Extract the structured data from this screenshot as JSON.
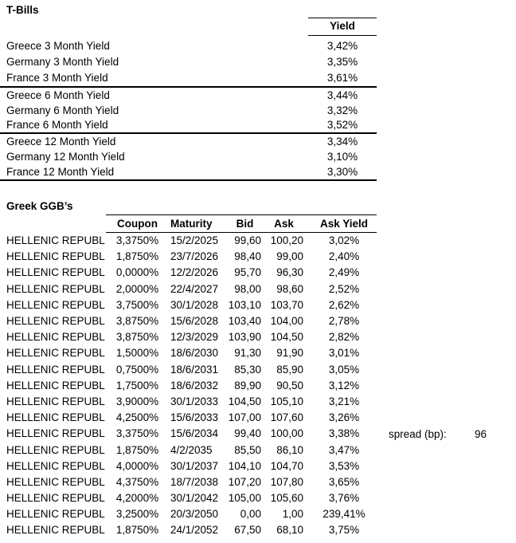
{
  "tbills": {
    "title": "T-Bills",
    "yield_header": "Yield",
    "groups": [
      [
        {
          "label": "Greece 3 Month Yield",
          "value": "3,42%"
        },
        {
          "label": "Germany 3 Month Yield",
          "value": "3,35%"
        },
        {
          "label": "France 3 Month Yield",
          "value": "3,61%"
        }
      ],
      [
        {
          "label": "Greece 6 Month Yield",
          "value": "3,44%"
        },
        {
          "label": "Germany 6 Month Yield",
          "value": "3,32%"
        },
        {
          "label": "France 6 Month Yield",
          "value": "3,52%"
        }
      ],
      [
        {
          "label": "Greece 12 Month Yield",
          "value": "3,34%"
        },
        {
          "label": "Germany 12 Month Yield",
          "value": "3,10%"
        },
        {
          "label": "France 12 Month Yield",
          "value": "3,30%"
        }
      ]
    ]
  },
  "ggb": {
    "title": "Greek GGB’s",
    "columns": [
      "Coupon",
      "Maturity",
      "Bid",
      "Ask",
      "Ask Yield"
    ],
    "rows": [
      {
        "issuer": "HELLENIC REPUBLI",
        "coupon": "3,3750%",
        "maturity": "15/2/2025",
        "bid": "99,60",
        "ask": "100,20",
        "ask_yield": "3,02%"
      },
      {
        "issuer": "HELLENIC REPUBLI",
        "coupon": "1,8750%",
        "maturity": "23/7/2026",
        "bid": "98,40",
        "ask": "99,00",
        "ask_yield": "2,40%"
      },
      {
        "issuer": "HELLENIC REPUBLI",
        "coupon": "0,0000%",
        "maturity": "12/2/2026",
        "bid": "95,70",
        "ask": "96,30",
        "ask_yield": "2,49%"
      },
      {
        "issuer": "HELLENIC REPUBLI",
        "coupon": "2,0000%",
        "maturity": "22/4/2027",
        "bid": "98,00",
        "ask": "98,60",
        "ask_yield": "2,52%"
      },
      {
        "issuer": "HELLENIC REPUBLI",
        "coupon": "3,7500%",
        "maturity": "30/1/2028",
        "bid": "103,10",
        "ask": "103,70",
        "ask_yield": "2,62%"
      },
      {
        "issuer": "HELLENIC REPUBLI",
        "coupon": "3,8750%",
        "maturity": "15/6/2028",
        "bid": "103,40",
        "ask": "104,00",
        "ask_yield": "2,78%"
      },
      {
        "issuer": "HELLENIC REPUBLI",
        "coupon": "3,8750%",
        "maturity": "12/3/2029",
        "bid": "103,90",
        "ask": "104,50",
        "ask_yield": "2,82%"
      },
      {
        "issuer": "HELLENIC REPUBLI",
        "coupon": "1,5000%",
        "maturity": "18/6/2030",
        "bid": "91,30",
        "ask": "91,90",
        "ask_yield": "3,01%"
      },
      {
        "issuer": "HELLENIC REPUBLI",
        "coupon": "0,7500%",
        "maturity": "18/6/2031",
        "bid": "85,30",
        "ask": "85,90",
        "ask_yield": "3,05%"
      },
      {
        "issuer": "HELLENIC REPUBLI",
        "coupon": "1,7500%",
        "maturity": "18/6/2032",
        "bid": "89,90",
        "ask": "90,50",
        "ask_yield": "3,12%"
      },
      {
        "issuer": "HELLENIC REPUBLI",
        "coupon": "3,9000%",
        "maturity": "30/1/2033",
        "bid": "104,50",
        "ask": "105,10",
        "ask_yield": "3,21%"
      },
      {
        "issuer": "HELLENIC REPUBLI",
        "coupon": "4,2500%",
        "maturity": "15/6/2033",
        "bid": "107,00",
        "ask": "107,60",
        "ask_yield": "3,26%"
      },
      {
        "issuer": "HELLENIC REPUBLI",
        "coupon": "3,3750%",
        "maturity": "15/6/2034",
        "bid": "99,40",
        "ask": "100,00",
        "ask_yield": "3,38%"
      },
      {
        "issuer": "HELLENIC REPUBLI",
        "coupon": "1,8750%",
        "maturity": "4/2/2035",
        "bid": "85,50",
        "ask": "86,10",
        "ask_yield": "3,47%"
      },
      {
        "issuer": "HELLENIC REPUBLI",
        "coupon": "4,0000%",
        "maturity": "30/1/2037",
        "bid": "104,10",
        "ask": "104,70",
        "ask_yield": "3,53%"
      },
      {
        "issuer": "HELLENIC REPUBLI",
        "coupon": "4,3750%",
        "maturity": "18/7/2038",
        "bid": "107,20",
        "ask": "107,80",
        "ask_yield": "3,65%"
      },
      {
        "issuer": "HELLENIC REPUBLI",
        "coupon": "4,2000%",
        "maturity": "30/1/2042",
        "bid": "105,00",
        "ask": "105,60",
        "ask_yield": "3,76%"
      },
      {
        "issuer": "HELLENIC REPUBLI",
        "coupon": "3,2500%",
        "maturity": "20/3/2050",
        "bid": "0,00",
        "ask": "1,00",
        "ask_yield": "239,41%"
      },
      {
        "issuer": "HELLENIC REPUBLI",
        "coupon": "1,8750%",
        "maturity": "24/1/2052",
        "bid": "67,50",
        "ask": "68,10",
        "ask_yield": "3,75%"
      }
    ]
  },
  "spread": {
    "label": "spread (bp):",
    "value": "96"
  }
}
